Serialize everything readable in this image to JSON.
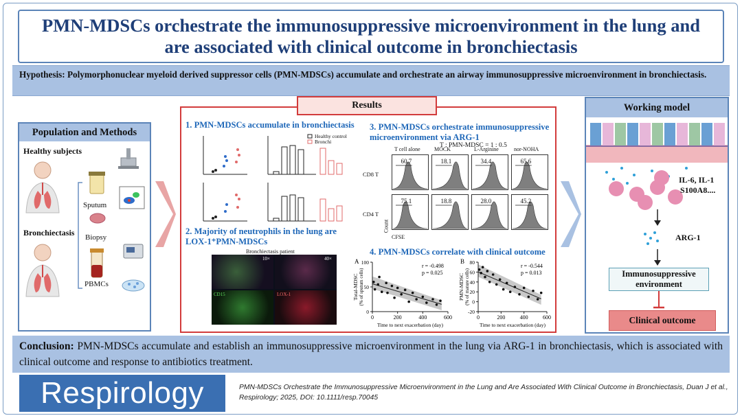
{
  "title": "PMN-MDSCs orchestrate the immunosuppressive microenvironment in the lung and are associated with clinical outcome in bronchiectasis",
  "hypothesis": "Hypothesis: Polymorphonuclear myeloid derived suppressor cells (PMN-MDSCs) accumulate and orchestrate an airway immunosuppressive microenvironment in bronchiectasis.",
  "population": {
    "heading": "Population and Methods",
    "healthy": "Healthy subjects",
    "bronchiectasis": "Bronchiectasis",
    "sputum": "Sputum",
    "biopsy": "Biopsy",
    "pbmcs": "PBMCs"
  },
  "results": {
    "heading": "Results",
    "s1": "1. PMN-MDSCs accumulate in bronchiectasis",
    "s1_legend_healthy": "Healthy control",
    "s1_legend_bronchi": "Bronchi",
    "s2": "2. Majority of neutrophils in the lung are LOX-1⁺PMN-MDSCs",
    "s2_caption": "Bronchiectasis patient",
    "s2_mag1": "10×",
    "s2_mag2": "40×",
    "s2_cd15": "CD15",
    "s2_lox1": "LOX-1",
    "s3": "3. PMN-MDSCs orchestrate immunosuppressive microenvironment via ARG-1",
    "s3_ratio": "T : PMN-MDSC = 1 : 0.5",
    "s3_cols": [
      "T cell alone",
      "MOCK",
      "L-Arginine",
      "nor-NOHA"
    ],
    "s3_rows": [
      "CD8 T",
      "CD4 T"
    ],
    "s3_cd8_values": [
      "60.7",
      "18.1",
      "34.4",
      "65.6"
    ],
    "s3_cd4_values": [
      "75.1",
      "18.8",
      "28.0",
      "45.2"
    ],
    "s3_xaxis": "CFSE",
    "s3_yaxis": "Count",
    "s4": "4. PMN-MDSCs correlate with clinical outcome",
    "s4_a_label": "A",
    "s4_b_label": "B",
    "s4_a_r": "r = -0.498",
    "s4_a_p": "p = 0.025",
    "s4_b_r": "r = -0.544",
    "s4_b_p": "p = 0.013",
    "s4_a_ylabel": "Total-MDSC",
    "s4_a_ylabel2": "(% of sputum cells)",
    "s4_b_ylabel": "PMN-MDSC",
    "s4_b_ylabel2": "(% of mature cells)",
    "s4_xlabel": "Time to next exacerbation (day)"
  },
  "chart_data": [
    {
      "type": "scatter",
      "title": "",
      "xlabel": "Time to next exacerbation (day)",
      "ylabel": "Total-MDSC (% of sputum cells)",
      "xlim": [
        0,
        600
      ],
      "ylim": [
        0,
        100
      ],
      "xticks": [
        0,
        200,
        400,
        600
      ],
      "yticks": [
        0,
        50,
        100
      ],
      "x": [
        10,
        20,
        45,
        55,
        75,
        110,
        120,
        155,
        175,
        200,
        230,
        260,
        290,
        320,
        350,
        400,
        430,
        480,
        510,
        540
      ],
      "y": [
        60,
        45,
        55,
        70,
        40,
        58,
        38,
        52,
        28,
        48,
        35,
        44,
        20,
        38,
        25,
        30,
        18,
        25,
        14,
        22
      ]
    },
    {
      "type": "scatter",
      "title": "",
      "xlabel": "Time to next exacerbation (day)",
      "ylabel": "PMN-MDSC (% of mature cells)",
      "xlim": [
        0,
        600
      ],
      "ylim": [
        -20,
        80
      ],
      "xticks": [
        0,
        200,
        400,
        600
      ],
      "yticks": [
        -20,
        0,
        20,
        40,
        60,
        80
      ],
      "x": [
        10,
        25,
        40,
        60,
        80,
        100,
        130,
        160,
        190,
        220,
        250,
        280,
        320,
        360,
        400,
        440,
        480,
        520,
        550
      ],
      "y": [
        65,
        58,
        70,
        50,
        62,
        40,
        55,
        35,
        45,
        25,
        38,
        20,
        30,
        15,
        28,
        10,
        22,
        5,
        18
      ]
    }
  ],
  "model": {
    "heading": "Working model",
    "cytokines_line1": "IL-6, IL-1",
    "cytokines_line2": "S100A8....",
    "arg1": "ARG-1",
    "immuno": "Immunosuppressive environment",
    "clinical": "Clinical outcome"
  },
  "conclusion_label": "Conclusion:",
  "conclusion_text": " PMN-MDSCs accumulate and establish an immunosuppressive microenvironment in the lung via ARG-1 in bronchiectasis, which is associated with clinical outcome and response to antibiotics treatment.",
  "journal": "Respirology",
  "citation": "PMN-MDSCs Orchestrate the Immunosuppressive Microenvironment in the Lung and Are Associated With Clinical Outcome in Bronchiectasis, Duan J et al., Respirology; 2025, DOI: 10.1111/resp.70045",
  "colors": {
    "title_blue": "#1f3f78",
    "band_blue": "#a9c1e2",
    "border_blue": "#5b84b8",
    "results_red": "#d23b3b",
    "section_blue": "#1e67b8",
    "clinical_fill": "#e98a8a",
    "logo_blue": "#3a6fb2"
  }
}
